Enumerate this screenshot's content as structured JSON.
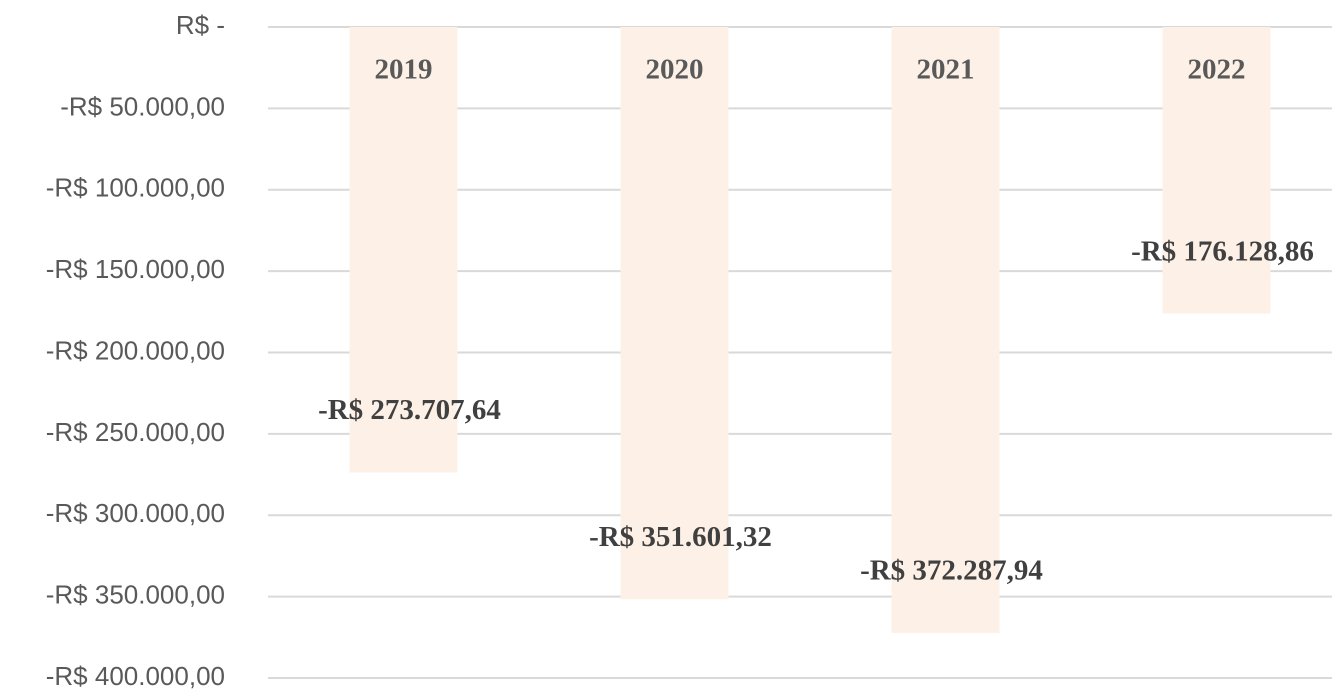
{
  "chart_data": {
    "type": "bar",
    "categories": [
      "2019",
      "2020",
      "2021",
      "2022"
    ],
    "values": [
      -273707.64,
      -351601.32,
      -372287.94,
      -176128.86
    ],
    "value_labels": [
      "-R$ 273.707,64",
      "-R$ 351.601,32",
      "-R$ 372.287,94",
      "-R$ 176.128,86"
    ],
    "color": "#fdf0e6",
    "ylim": [
      -400000,
      0
    ],
    "yticks": [
      {
        "value": 0,
        "label": "R$ -"
      },
      {
        "value": -50000,
        "label": "-R$ 50.000,00"
      },
      {
        "value": -100000,
        "label": "-R$ 100.000,00"
      },
      {
        "value": -150000,
        "label": "-R$ 150.000,00"
      },
      {
        "value": -200000,
        "label": "-R$ 200.000,00"
      },
      {
        "value": -250000,
        "label": "-R$ 250.000,00"
      },
      {
        "value": -300000,
        "label": "-R$ 300.000,00"
      },
      {
        "value": -350000,
        "label": "-R$ 350.000,00"
      },
      {
        "value": -400000,
        "label": "-R$ 400.000,00"
      }
    ],
    "grid": true
  }
}
